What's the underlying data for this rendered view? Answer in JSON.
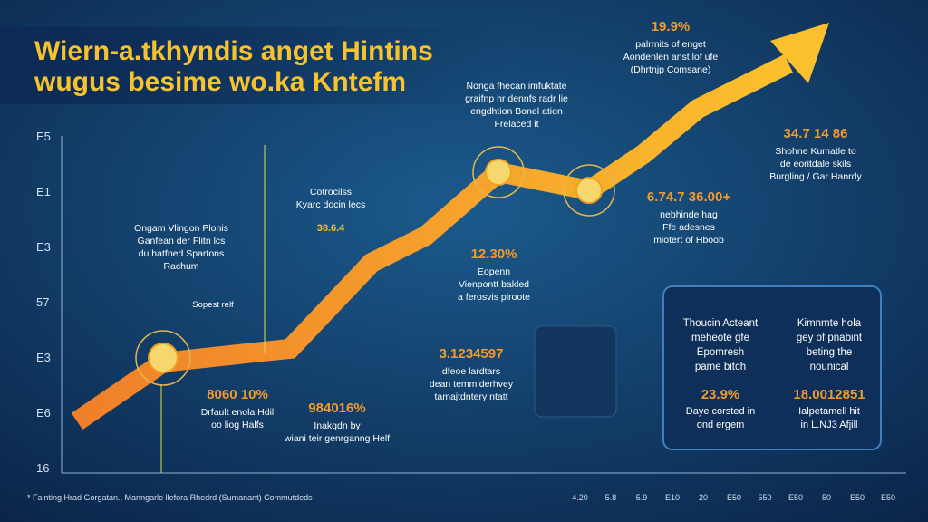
{
  "header": {
    "title_lines": [
      "Wiern-a.tkhyndis anget Hintins",
      "wugus besime wo.ka Kntefm"
    ]
  },
  "y_labels": [
    "E5",
    "E1",
    "E3",
    "57",
    "E3",
    "E6",
    "16"
  ],
  "x_labels": [
    "4.20",
    "5.8",
    "5.9",
    "E10",
    "20",
    "E50",
    "550",
    "E50",
    "50",
    "E50",
    "E50"
  ],
  "callouts": [
    {
      "headline": "19.9%",
      "lines": [
        "palrmits of enget",
        "Aondenlen anst lof ufe",
        "(Dhrtnjp Comsane)"
      ]
    },
    {
      "lines": [
        "Nonga fhecan imfuktate",
        "graifnp hr dennfs radr lie",
        "engdhtion Bonel ation",
        "Frelaced it"
      ]
    },
    {
      "headline": "34.7 14 86",
      "lines": [
        "Shohne Kumatle to",
        "de eoritdale skils",
        "Burgling / Gar Hanrdy"
      ]
    },
    {
      "headline": "6.74.7 36.00+",
      "lines": [
        "nebhinde hag",
        "Ffe adesnes",
        "miotert of Hboob"
      ]
    },
    {
      "lines": [
        "Cotrocilss",
        "Kyarc docin lecs"
      ],
      "headline": "38.6.4"
    },
    {
      "lines": [
        "Ongam Vlingon Plonis",
        "Ganfean der Flitn lcs",
        "du hatfned Spartons",
        "Rachum"
      ],
      "note": "Sopest relf"
    },
    {
      "headline": "12.30%",
      "lines": [
        "Eopenn",
        "Vienpontt bakled",
        "a ferosvis plroote"
      ]
    },
    {
      "headline": "3.1234597",
      "lines": [
        "dfeoe lardtars",
        "dean temmiderhvey",
        "tamajtdntery ntatt"
      ]
    },
    {
      "headline": "8060 10%",
      "lines": [
        "Drfault enola Hdil",
        "oo liog Halfs"
      ]
    },
    {
      "headline": "984016%",
      "lines": [
        "Inakgdn by",
        "wiani teir genrganng Helf"
      ]
    }
  ],
  "panel": {
    "columns": [
      {
        "lines": [
          "Thoucin Acteant",
          "meheote gfe",
          "Epomresh",
          "pame bitch"
        ],
        "headline": "23.9%",
        "sub": [
          "Daye corsted in",
          "ond ergem"
        ]
      },
      {
        "lines": [
          "Kimnmte hola",
          "gey of pnabint",
          "beting the",
          "nounical"
        ],
        "headline": "18.0012851",
        "sub": [
          "Ialpetamell hit",
          "in L.NJ3 Afjill"
        ]
      }
    ]
  },
  "footer": "* Fainting Hrad Gorgatan., Manngarle llefora Rhedrd (Sumanant) Commutdeds"
}
